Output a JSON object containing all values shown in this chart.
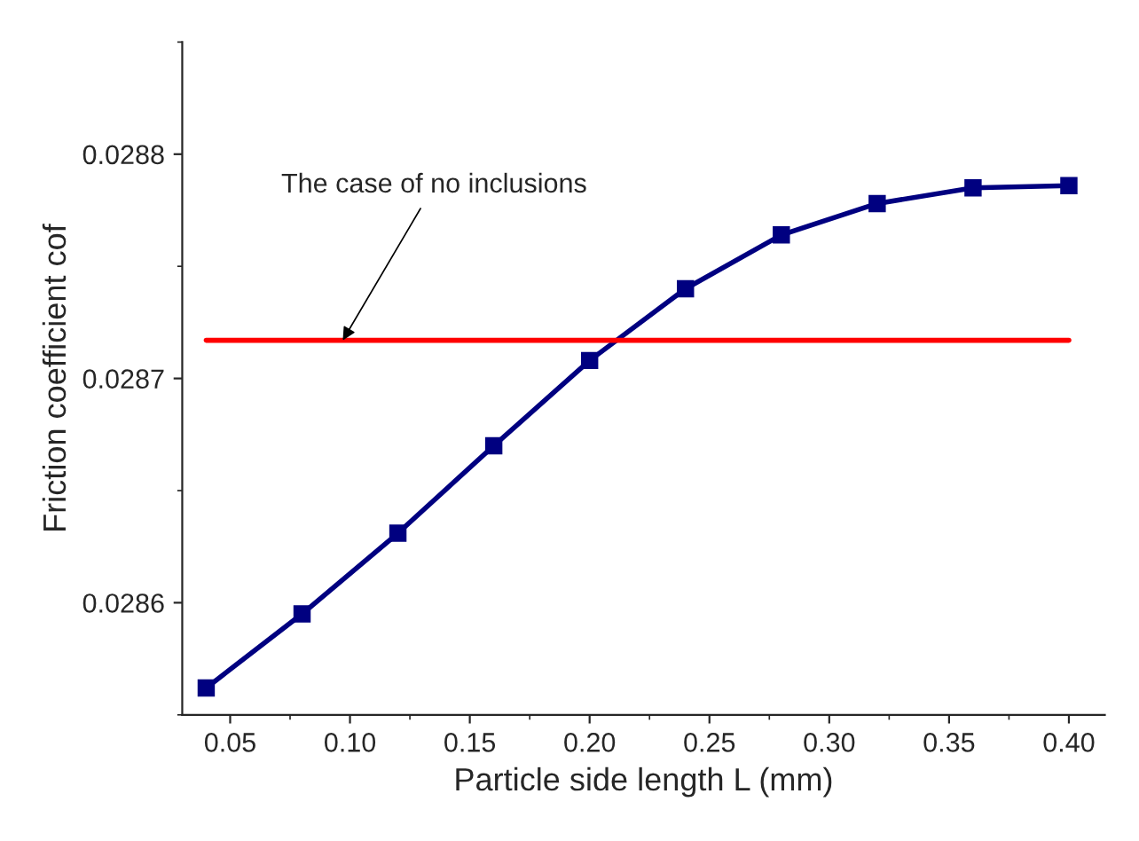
{
  "chart_data": {
    "type": "line",
    "xlabel": "Particle side length L (mm)",
    "ylabel": "Friction coefficient cof",
    "x": [
      0.04,
      0.08,
      0.12,
      0.16,
      0.2,
      0.24,
      0.28,
      0.32,
      0.36,
      0.4
    ],
    "series": [
      {
        "color": "#000080",
        "marker": "square",
        "values": [
          0.028562,
          0.028595,
          0.028631,
          0.02867,
          0.028708,
          0.02874,
          0.028764,
          0.028778,
          0.028785,
          0.028786
        ]
      },
      {
        "color": "#ff0000",
        "marker": "none",
        "x": [
          0.04,
          0.4
        ],
        "values": [
          0.028717,
          0.028717
        ]
      }
    ],
    "annotations": [
      {
        "text": "The case of no inclusions",
        "x": 0.097,
        "y": 0.028717
      }
    ],
    "xlim": [
      0.03,
      0.415
    ],
    "ylim": [
      0.02855,
      0.02885
    ],
    "xticks": [
      {
        "value": 0.05,
        "label": "0.05"
      },
      {
        "value": 0.1,
        "label": "0.10"
      },
      {
        "value": 0.15,
        "label": "0.15"
      },
      {
        "value": 0.2,
        "label": "0.20"
      },
      {
        "value": 0.25,
        "label": "0.25"
      },
      {
        "value": 0.3,
        "label": "0.30"
      },
      {
        "value": 0.35,
        "label": "0.35"
      },
      {
        "value": 0.4,
        "label": "0.40"
      }
    ],
    "yticks": [
      0.0286,
      0.0287,
      0.0288
    ],
    "line_style": "solid"
  }
}
